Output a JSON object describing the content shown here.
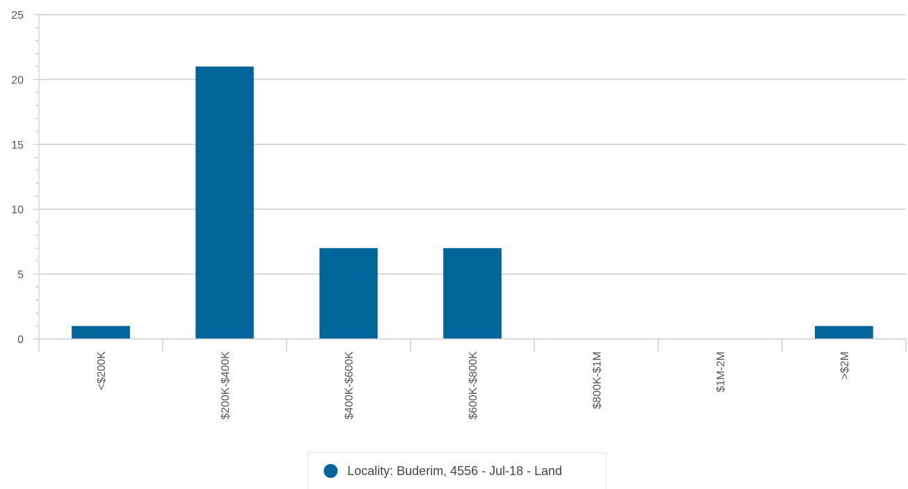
{
  "chart_data": {
    "type": "bar",
    "categories": [
      "<$200K",
      "$200K-$400K",
      "$400K-$600K",
      "$600K-$800K",
      "$800K-$1M",
      "$1M-2M",
      ">$2M"
    ],
    "series": [
      {
        "name": "Locality: Buderim, 4556 - Jul-18 - Land",
        "values": [
          1,
          21,
          7,
          7,
          0,
          0,
          1
        ]
      }
    ],
    "ylim": [
      0,
      25
    ],
    "yticks": [
      0,
      5,
      10,
      15,
      20,
      25
    ],
    "grid": true,
    "legend_position": "bottom-center"
  },
  "colors": {
    "bar": "#006699",
    "grid": "#cccccc",
    "axis": "#ccccdd"
  },
  "legend": {
    "label": "Locality: Buderim, 4556 - Jul-18 - Land"
  }
}
